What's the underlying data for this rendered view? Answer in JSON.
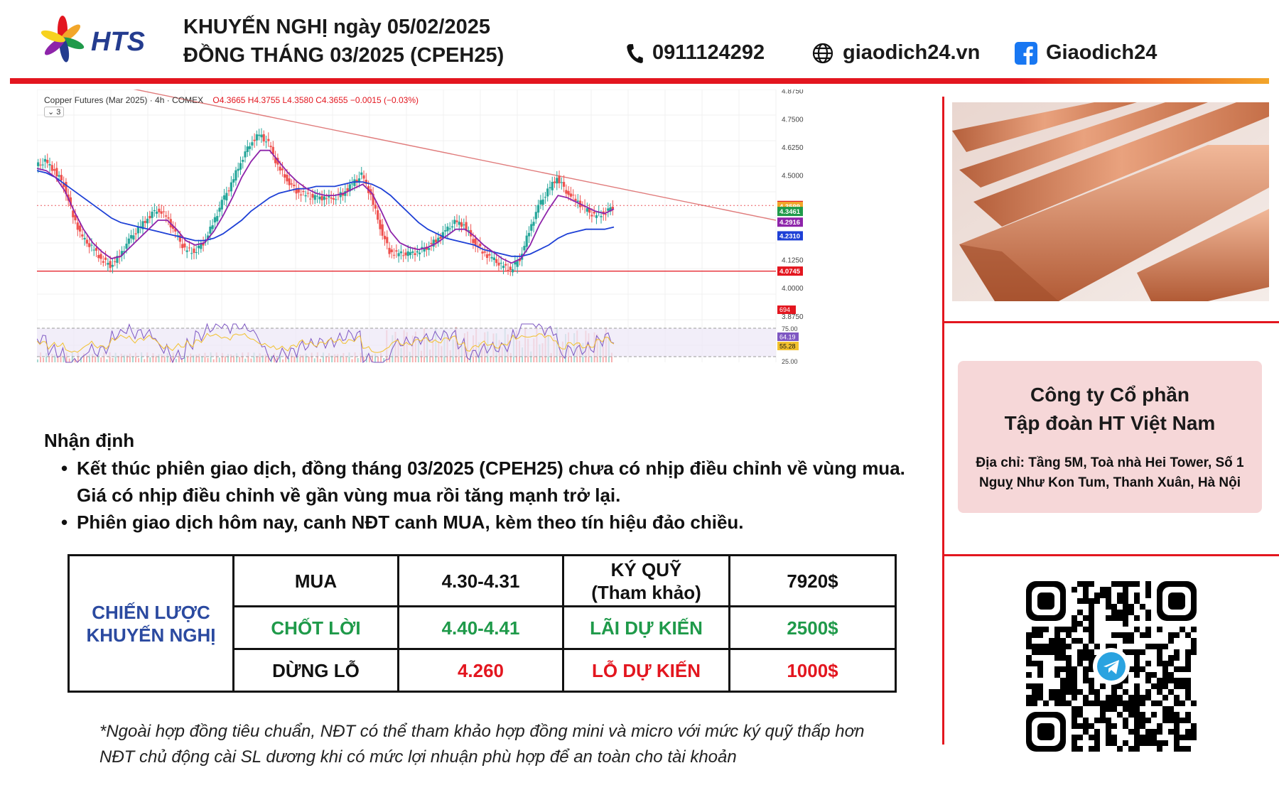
{
  "brand": {
    "logo_text": "HTS",
    "accent": "#e3161f",
    "navy": "#243c8f"
  },
  "header": {
    "title_line1": "KHUYẾN NGHỊ ngày 05/02/2025",
    "title_line2": "ĐỒNG THÁNG 03/2025 (CPEH25)",
    "phone": "0911124292",
    "website": "giaodich24.vn",
    "facebook": "Giaodich24"
  },
  "chart": {
    "legend_title": "Copper Futures (Mar 2025) · 4h · COMEX",
    "legend_values": "O4.3665  H4.3755  L4.3580  C4.3655  −0.0015 (−0.03%)",
    "legend_sub": "3"
  },
  "chart_data": {
    "type": "line",
    "title": "Copper Futures (Mar 2025) · 4h · COMEX",
    "y_ticks": [
      "4.8750",
      "4.7500",
      "4.6250",
      "4.5000",
      "4.1250",
      "4.0000",
      "3.8750"
    ],
    "price_labels": [
      {
        "text": "4.3655",
        "color": "#e3161f"
      },
      {
        "text": "4.3599",
        "color": "#f2a62a"
      },
      {
        "text": "4.3461",
        "color": "#1f9a4a"
      },
      {
        "text": "4.2916",
        "color": "#8e24aa"
      },
      {
        "text": "4.2310",
        "color": "#1e40d6"
      },
      {
        "text": "4.0745",
        "color": "#e3161f"
      }
    ],
    "volume_label": "694",
    "rsi_ticks": [
      "75.00",
      "25.00"
    ],
    "rsi_labels": [
      {
        "text": "64.19",
        "color": "#7e57c2"
      },
      {
        "text": "55.28",
        "color": "#f2c12e"
      }
    ],
    "ylim": [
      3.84,
      4.88
    ],
    "series": [
      {
        "values": [
          4.54,
          4.56,
          4.52,
          4.46,
          4.32,
          4.22,
          4.18,
          4.13,
          4.1,
          4.14,
          4.21,
          4.26,
          4.31,
          4.35,
          4.32,
          4.24,
          4.17,
          4.16,
          4.2,
          4.28,
          4.38,
          4.46,
          4.56,
          4.64,
          4.68,
          4.64,
          4.54,
          4.48,
          4.43,
          4.41,
          4.4,
          4.4,
          4.4,
          4.42,
          4.46,
          4.5,
          4.41,
          4.27,
          4.16,
          4.15,
          4.15,
          4.16,
          4.18,
          4.21,
          4.25,
          4.29,
          4.28,
          4.21,
          4.16,
          4.13,
          4.1,
          4.08,
          4.13,
          4.25,
          4.36,
          4.43,
          4.49,
          4.43,
          4.39,
          4.35,
          4.32,
          4.33,
          4.36
        ]
      },
      {
        "name": "MA",
        "values": [
          4.53,
          4.52,
          4.49,
          4.43,
          4.34,
          4.26,
          4.2,
          4.16,
          4.13,
          4.14,
          4.18,
          4.22,
          4.26,
          4.3,
          4.3,
          4.26,
          4.21,
          4.19,
          4.2,
          4.25,
          4.32,
          4.4,
          4.49,
          4.56,
          4.61,
          4.61,
          4.56,
          4.51,
          4.47,
          4.44,
          4.42,
          4.41,
          4.41,
          4.42,
          4.44,
          4.46,
          4.42,
          4.34,
          4.25,
          4.2,
          4.18,
          4.17,
          4.18,
          4.2,
          4.23,
          4.26,
          4.26,
          4.23,
          4.19,
          4.16,
          4.13,
          4.11,
          4.13,
          4.19,
          4.28,
          4.35,
          4.41,
          4.4,
          4.38,
          4.36,
          4.34,
          4.33,
          4.35
        ]
      },
      {
        "name": "MA long",
        "values": [
          4.52,
          4.51,
          4.49,
          4.46,
          4.43,
          4.4,
          4.37,
          4.34,
          4.31,
          4.29,
          4.28,
          4.27,
          4.26,
          4.25,
          4.24,
          4.23,
          4.22,
          4.21,
          4.21,
          4.22,
          4.24,
          4.27,
          4.3,
          4.34,
          4.37,
          4.4,
          4.42,
          4.43,
          4.44,
          4.44,
          4.45,
          4.45,
          4.45,
          4.46,
          4.47,
          4.47,
          4.46,
          4.44,
          4.41,
          4.37,
          4.33,
          4.29,
          4.26,
          4.24,
          4.22,
          4.21,
          4.2,
          4.19,
          4.17,
          4.16,
          4.15,
          4.14,
          4.14,
          4.15,
          4.17,
          4.19,
          4.22,
          4.24,
          4.25,
          4.26,
          4.26,
          4.26,
          4.27
        ]
      }
    ],
    "trendline": [
      4.88,
      4.3
    ],
    "support": 4.0745,
    "resistance_dotted": 4.3655
  },
  "analysis": {
    "title": "Nhận định",
    "bullets": [
      "Kết thúc phiên giao dịch, đồng tháng 03/2025 (CPEH25) chưa có nhịp điều chỉnh về vùng mua. Giá có nhịp điều chỉnh về gần vùng mua rồi tăng mạnh trở lại.",
      "Phiên giao dịch hôm nay, canh NĐT canh MUA, kèm theo tín hiệu đảo chiều."
    ]
  },
  "strategy": {
    "label_line1": "CHIẾN LƯỢC",
    "label_line2": "KHUYẾN NGHỊ",
    "buy_label": "MUA",
    "buy_value": "4.30-4.31",
    "margin_label_line1": "KÝ QUỸ",
    "margin_label_line2": "(Tham khảo)",
    "margin_value": "7920$",
    "tp_label": "CHỐT LỜI",
    "tp_value": "4.40-4.41",
    "profit_label": "LÃI DỰ KIẾN",
    "profit_value": "2500$",
    "sl_label": "DỪNG LỖ",
    "sl_value": "4.260",
    "loss_label": "LỖ DỰ KIẾN",
    "loss_value": "1000$"
  },
  "footnote": {
    "line1": "*Ngoài hợp đồng tiêu chuẩn, NĐT có thể tham khảo hợp đồng mini và micro với mức ký quỹ thấp hơn",
    "line2": "NĐT chủ động cài SL dương khi có mức lợi nhuận phù hợp để an toàn cho tài khoản"
  },
  "company": {
    "name_line1": "Công ty Cổ phần",
    "name_line2": "Tập đoàn HT Việt Nam",
    "address": "Địa chỉ: Tầng 5M, Toà nhà Hei Tower, Số 1 Nguỵ Như Kon Tum, Thanh Xuân, Hà Nội"
  }
}
